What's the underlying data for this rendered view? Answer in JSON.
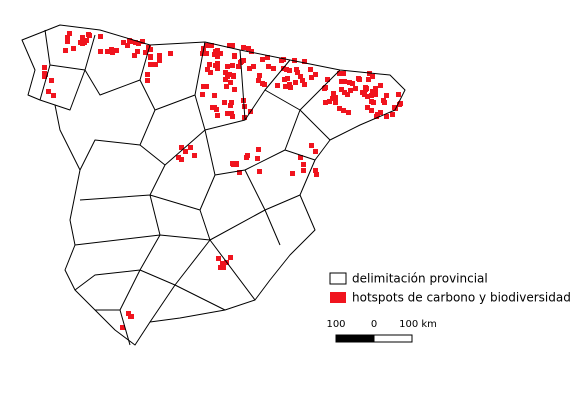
{
  "legend": {
    "items": [
      {
        "label": "delimitación provincial"
      },
      {
        "label": "hotspots de carbono y biodiversidad"
      }
    ]
  },
  "scale_bar": {
    "labels": [
      "100",
      "0",
      "100 km"
    ]
  }
}
